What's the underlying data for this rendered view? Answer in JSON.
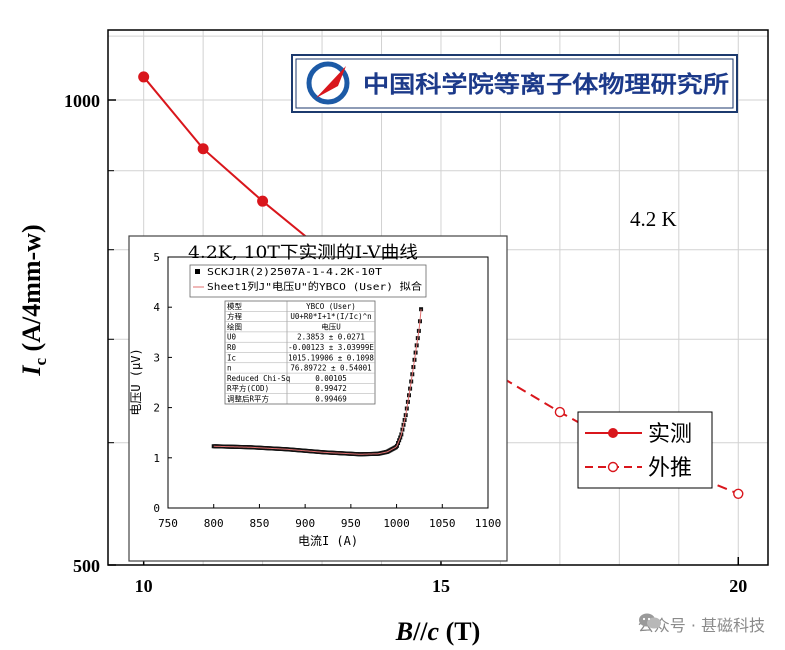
{
  "chart_data": {
    "type": "line",
    "xlabel": "B//c (T)",
    "ylabel": "Ic (A/4mm-w)",
    "y_scale": "log",
    "xlim": [
      9.4,
      20.5
    ],
    "ylim": [
      500,
      1110
    ],
    "x_ticks": [
      "10",
      "15",
      "20"
    ],
    "y_ticks": [
      "500",
      "1000"
    ],
    "annotation": "4.2 K",
    "series": [
      {
        "name": "实测",
        "style": "solid-filled",
        "x": [
          10,
          11,
          12,
          13,
          14
        ],
        "y": [
          1035,
          930,
          860,
          800,
          740
        ]
      },
      {
        "name": "外推",
        "style": "dashed-open",
        "x": [
          14,
          15,
          16,
          17,
          18,
          20
        ],
        "y": [
          740,
          705,
          662,
          628,
          598,
          556
        ]
      }
    ],
    "logo_text": "中国科学院等离子体物理研究所",
    "inset": {
      "type": "scatter",
      "title": "4.2K, 10T下实测的I-V曲线",
      "xlabel": "电流I (A)",
      "ylabel": "电压U (μV)",
      "xlim": [
        750,
        1100
      ],
      "ylim": [
        0,
        5
      ],
      "x_ticks": [
        "750",
        "800",
        "850",
        "900",
        "950",
        "1000",
        "1050",
        "1100"
      ],
      "y_ticks": [
        "0",
        "1",
        "2",
        "3",
        "4",
        "5"
      ],
      "legend": [
        {
          "label": "SCKJ1R(2)2507A-1-4.2K-10T",
          "kind": "square-marker"
        },
        {
          "label": "Sheet1列J\"电压U\"的YBCO (User) 拟合",
          "kind": "line"
        }
      ],
      "fit_table": [
        [
          "模型",
          "YBCO (User)"
        ],
        [
          "方程",
          "U0+R0*I+1*(I/Ic)^n"
        ],
        [
          "绘图",
          "电压U"
        ],
        [
          "U0",
          "2.3853 ± 0.0271"
        ],
        [
          "R0",
          "-0.00123 ± 3.03999E"
        ],
        [
          "Ic",
          "1015.19906 ± 0.1098"
        ],
        [
          "n",
          "76.89722 ± 0.54001"
        ],
        [
          "Reduced Chi-Sq",
          "0.00105"
        ],
        [
          "R平方(COD)",
          "0.99472"
        ],
        [
          "调整后R平方",
          "0.99469"
        ]
      ],
      "data": {
        "x": [
          800,
          820,
          840,
          860,
          880,
          900,
          920,
          940,
          960,
          980,
          990,
          1000,
          1005,
          1010,
          1015,
          1020,
          1025,
          1028
        ],
        "y": [
          1.23,
          1.22,
          1.21,
          1.19,
          1.17,
          1.14,
          1.11,
          1.09,
          1.07,
          1.08,
          1.12,
          1.22,
          1.45,
          1.85,
          2.4,
          3.0,
          3.6,
          4.2
        ]
      }
    }
  },
  "watermark": "公众号 · 甚磁科技"
}
